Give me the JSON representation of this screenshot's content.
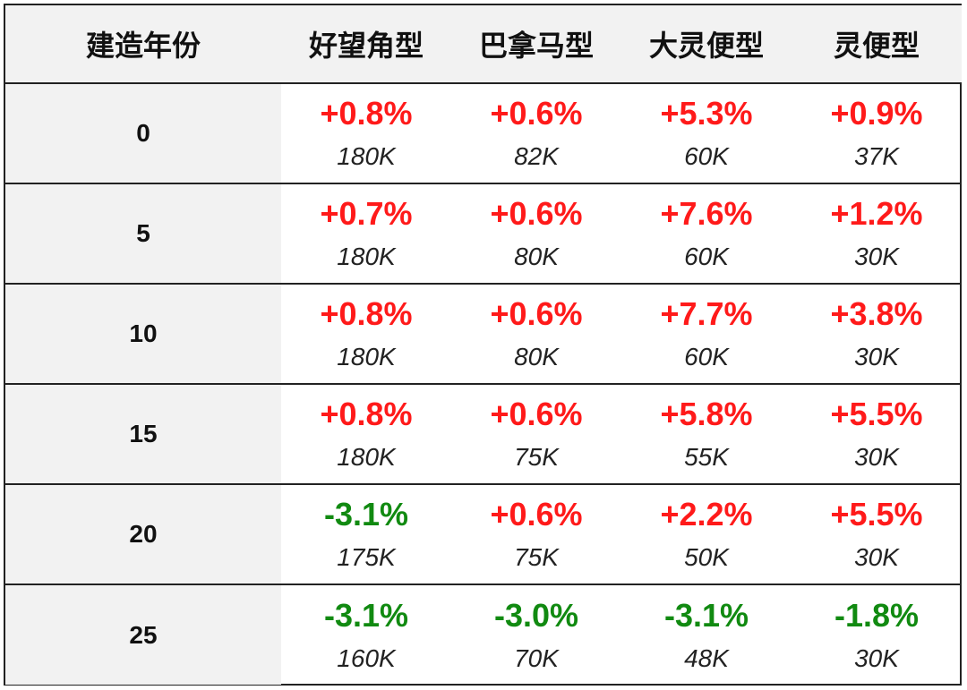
{
  "header": {
    "columns": [
      "建造年份",
      "好望角型",
      "巴拿马型",
      "大灵便型",
      "灵便型"
    ]
  },
  "colors": {
    "positive": "#ff1a1a",
    "negative": "#118a11",
    "header_bg": "#f2f2f2"
  },
  "rows": [
    {
      "year": "0",
      "cells": [
        {
          "pct": "+0.8%",
          "vol": "180K"
        },
        {
          "pct": "+0.6%",
          "vol": "82K"
        },
        {
          "pct": "+5.3%",
          "vol": "60K"
        },
        {
          "pct": "+0.9%",
          "vol": "37K"
        }
      ]
    },
    {
      "year": "5",
      "cells": [
        {
          "pct": "+0.7%",
          "vol": "180K"
        },
        {
          "pct": "+0.6%",
          "vol": "80K"
        },
        {
          "pct": "+7.6%",
          "vol": "60K"
        },
        {
          "pct": "+1.2%",
          "vol": "30K"
        }
      ]
    },
    {
      "year": "10",
      "cells": [
        {
          "pct": "+0.8%",
          "vol": "180K"
        },
        {
          "pct": "+0.6%",
          "vol": "80K"
        },
        {
          "pct": "+7.7%",
          "vol": "60K"
        },
        {
          "pct": "+3.8%",
          "vol": "30K"
        }
      ]
    },
    {
      "year": "15",
      "cells": [
        {
          "pct": "+0.8%",
          "vol": "180K"
        },
        {
          "pct": "+0.6%",
          "vol": "75K"
        },
        {
          "pct": "+5.8%",
          "vol": "55K"
        },
        {
          "pct": "+5.5%",
          "vol": "30K"
        }
      ]
    },
    {
      "year": "20",
      "cells": [
        {
          "pct": "-3.1%",
          "vol": "175K"
        },
        {
          "pct": "+0.6%",
          "vol": "75K"
        },
        {
          "pct": "+2.2%",
          "vol": "50K"
        },
        {
          "pct": "+5.5%",
          "vol": "30K"
        }
      ]
    },
    {
      "year": "25",
      "cells": [
        {
          "pct": "-3.1%",
          "vol": "160K"
        },
        {
          "pct": "-3.0%",
          "vol": "70K"
        },
        {
          "pct": "-3.1%",
          "vol": "48K"
        },
        {
          "pct": "-1.8%",
          "vol": "30K"
        }
      ]
    }
  ]
}
